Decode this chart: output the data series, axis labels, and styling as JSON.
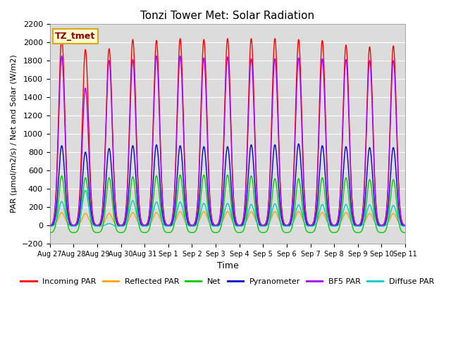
{
  "title": "Tonzi Tower Met: Solar Radiation",
  "ylabel": "PAR (μmol/m2/s) / Net and Solar (W/m2)",
  "xlabel": "Time",
  "ylim": [
    -200,
    2200
  ],
  "yticks": [
    -200,
    0,
    200,
    400,
    600,
    800,
    1000,
    1200,
    1400,
    1600,
    1800,
    2000,
    2200
  ],
  "x_tick_labels": [
    "Aug 27",
    "Aug 28",
    "Aug 29",
    "Aug 30",
    "Aug 31",
    "Sep 1",
    "Sep 2",
    "Sep 3",
    "Sep 4",
    "Sep 5",
    "Sep 6",
    "Sep 7",
    "Sep 8",
    "Sep 9",
    "Sep 10",
    "Sep 11"
  ],
  "label_box_text": "TZ_tmet",
  "label_box_color": "#FFFACD",
  "label_box_edge_color": "#DAA520",
  "label_text_color": "#8B0000",
  "background_color": "#DCDCDC",
  "series": {
    "Incoming PAR": {
      "color": "#FF0000",
      "lw": 1.0
    },
    "Reflected PAR": {
      "color": "#FFA500",
      "lw": 1.0
    },
    "Net": {
      "color": "#00CC00",
      "lw": 1.0
    },
    "Pyranometer": {
      "color": "#0000CC",
      "lw": 1.0
    },
    "BF5 PAR": {
      "color": "#AA00FF",
      "lw": 1.0
    },
    "Diffuse PAR": {
      "color": "#00CCCC",
      "lw": 1.0
    }
  },
  "n_days": 15,
  "points_per_day": 480,
  "peaks": {
    "Incoming PAR": [
      2060,
      1920,
      1930,
      2030,
      2020,
      2040,
      2030,
      2040,
      2040,
      2040,
      2030,
      2020,
      1970,
      1950,
      1960
    ],
    "Reflected PAR": [
      140,
      130,
      130,
      140,
      140,
      150,
      150,
      150,
      150,
      150,
      150,
      140,
      140,
      130,
      130
    ],
    "Net": [
      620,
      600,
      600,
      610,
      620,
      630,
      630,
      630,
      620,
      590,
      590,
      600,
      600,
      580,
      580
    ],
    "Pyranometer": [
      880,
      810,
      850,
      880,
      890,
      880,
      870,
      870,
      890,
      890,
      900,
      880,
      870,
      860,
      860
    ],
    "BF5 PAR": [
      1850,
      1500,
      1800,
      1810,
      1850,
      1850,
      1830,
      1840,
      1820,
      1820,
      1830,
      1820,
      1810,
      1800,
      1800
    ],
    "Diffuse PAR": [
      270,
      390,
      30,
      280,
      265,
      265,
      250,
      250,
      240,
      245,
      235,
      238,
      238,
      235,
      228
    ]
  },
  "night_min": {
    "Incoming PAR": 0,
    "Reflected PAR": 0,
    "Net": -80,
    "Pyranometer": -10,
    "BF5 PAR": 0,
    "Diffuse PAR": -10
  }
}
